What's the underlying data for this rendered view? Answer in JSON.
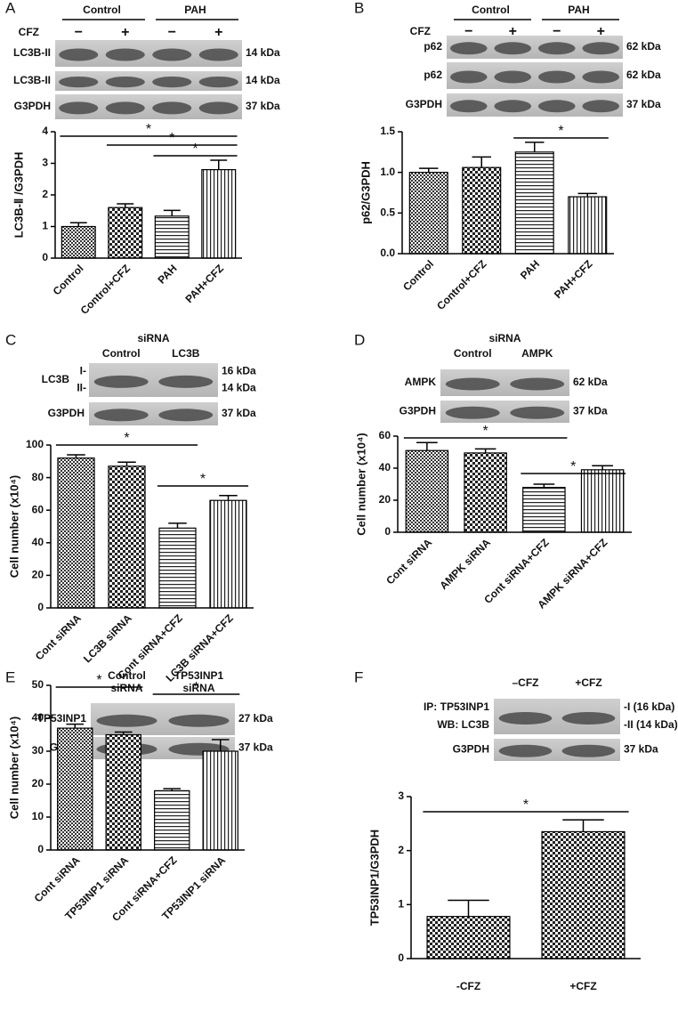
{
  "panels": [
    {
      "label": "A",
      "groups": [
        "Control",
        "PAH"
      ],
      "lane_row": {
        "name": "CFZ",
        "marks": [
          "−",
          "+",
          "−",
          "+"
        ]
      },
      "rows": [
        {
          "name": [
            "LC3B-II"
          ],
          "size": [
            "14 kDa"
          ]
        },
        {
          "name": [
            "LC3B-II"
          ],
          "size": [
            "14 kDa"
          ]
        },
        {
          "name": [
            "G3PDH"
          ],
          "size": [
            "37 kDa"
          ]
        }
      ]
    },
    {
      "label": "B",
      "groups": [
        "Control",
        "PAH"
      ],
      "lane_row": {
        "name": "CFZ",
        "marks": [
          "−",
          "+",
          "−",
          "+"
        ]
      },
      "rows": [
        {
          "name": [
            "p62"
          ],
          "size": [
            "62 kDa"
          ]
        },
        {
          "name": [
            "p62"
          ],
          "size": [
            "62 kDa"
          ]
        },
        {
          "name": [
            "G3PDH"
          ],
          "size": [
            "37 kDa"
          ]
        }
      ]
    },
    {
      "label": "C",
      "title": "siRNA",
      "groups": [
        "Control",
        "LC3B"
      ],
      "rows": [
        {
          "name": [
            "LC3B"
          ],
          "marks": [
            "I-",
            "II-"
          ],
          "size": [
            "16 kDa",
            "14 kDa"
          ]
        },
        {
          "name": [
            "G3PDH"
          ],
          "size": [
            "37 kDa"
          ]
        }
      ]
    },
    {
      "label": "D",
      "title": "siRNA",
      "groups": [
        "Control",
        "AMPK"
      ],
      "rows": [
        {
          "name": [
            "AMPK"
          ],
          "size": [
            "62 kDa"
          ]
        },
        {
          "name": [
            "G3PDH"
          ],
          "size": [
            "37 kDa"
          ]
        }
      ]
    },
    {
      "label": "E",
      "groups": [
        [
          "Control",
          "siRNA"
        ],
        [
          "TP53INP1",
          "siRNA"
        ]
      ],
      "rows": [
        {
          "name": [
            "TP53INP1"
          ],
          "size": [
            "27 kDa"
          ]
        },
        {
          "name": [
            "G3PDH"
          ],
          "size": [
            "37 kDa"
          ]
        }
      ]
    },
    {
      "label": "F",
      "groups": [
        "–CFZ",
        "+CFZ"
      ],
      "rows": [
        {
          "name": [
            "IP: TP53INP1",
            "WB: LC3B"
          ],
          "size": [
            "-I (16 kDa)",
            "-II (14 kDa)"
          ]
        },
        {
          "name": [
            "G3PDH"
          ],
          "size": [
            "37 kDa"
          ]
        }
      ]
    }
  ],
  "chart_data": [
    {
      "type": "bar",
      "ylabel": "LC3B-Ⅱ /G3PDH",
      "categories": [
        "Control",
        "Control+CFZ",
        "PAH",
        "PAH+CFZ"
      ],
      "values": [
        1.0,
        1.6,
        1.33,
        2.8
      ],
      "errors": [
        0.12,
        0.12,
        0.18,
        0.3
      ],
      "ylim": [
        0,
        4
      ],
      "yticks": [
        0,
        1,
        2,
        3,
        4
      ],
      "significance": [
        "*",
        "*",
        "*"
      ]
    },
    {
      "type": "bar",
      "ylabel": "p62/G3PDH",
      "categories": [
        "Control",
        "Control+CFZ",
        "PAH",
        "PAH+CFZ"
      ],
      "values": [
        1.0,
        1.06,
        1.25,
        0.7
      ],
      "errors": [
        0.05,
        0.13,
        0.12,
        0.04
      ],
      "ylim": [
        0,
        1.5
      ],
      "yticks": [
        {
          "value": 0,
          "label": "0.0"
        },
        0.5,
        {
          "value": 1,
          "label": "1.0"
        },
        1.5
      ],
      "significance": [
        "*"
      ]
    },
    {
      "type": "bar",
      "ylabel": "Cell number (x10⁴)",
      "categories": [
        "Cont siRNA",
        "LC3B siRNA",
        "Cont siRNA+CFZ",
        "LC3B siRNA+CFZ"
      ],
      "values": [
        92,
        87,
        49,
        66
      ],
      "errors": [
        2,
        2.5,
        3,
        3
      ],
      "ylim": [
        0,
        100
      ],
      "yticks": [
        0,
        20,
        40,
        60,
        80,
        100
      ],
      "significance": [
        "*",
        "*"
      ]
    },
    {
      "type": "bar",
      "ylabel": "Cell number (x10⁴)",
      "categories": [
        "Cont siRNA",
        "AMPK siRNA",
        "Cont siRNA+CFZ",
        "AMPK siRNA+CFZ"
      ],
      "values": [
        51,
        49.5,
        28,
        39
      ],
      "errors": [
        5,
        2.5,
        2,
        2.5
      ],
      "ylim": [
        0,
        60
      ],
      "yticks": [
        0,
        20,
        40,
        60
      ],
      "significance": [
        "*",
        "*"
      ]
    },
    {
      "type": "bar",
      "ylabel": "Cell number (x10⁴)",
      "categories": [
        "Cont siRNA",
        "TP53INP1 siRNA",
        "Cont siRNA+CFZ",
        "TP53INP1 siRNA"
      ],
      "values": [
        37,
        35,
        18,
        30
      ],
      "errors": [
        1.2,
        0.8,
        0.6,
        3.5
      ],
      "ylim": [
        0,
        50
      ],
      "yticks": [
        0,
        10,
        20,
        30,
        40,
        50
      ],
      "significance": [
        "*",
        "*"
      ]
    },
    {
      "type": "bar",
      "ylabel": "TP53INP1/G3PDH",
      "categories": [
        "-CFZ",
        "+CFZ"
      ],
      "values": [
        0.78,
        2.35
      ],
      "errors": [
        0.3,
        0.22
      ],
      "ylim": [
        0,
        3
      ],
      "yticks": [
        0,
        1,
        2,
        3
      ],
      "significance": [
        "*"
      ]
    }
  ]
}
